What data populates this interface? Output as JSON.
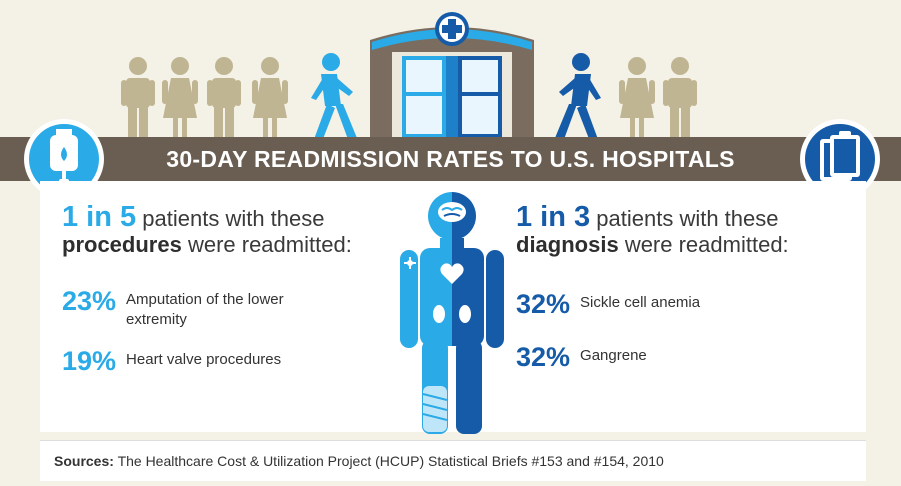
{
  "banner": {
    "title": "30-DAY READMISSION RATES TO U.S. HOSPITALS"
  },
  "left": {
    "ratio_big": "1 in 5",
    "ratio_text": "patients with these",
    "ratio_bold": "procedures",
    "ratio_end": "were readmitted:",
    "stats": [
      {
        "percent": "23%",
        "label_line1": "Amputation of the lower",
        "label_line2": "extremity"
      },
      {
        "percent": "19%",
        "label_line1": "Heart valve procedures",
        "label_line2": ""
      }
    ]
  },
  "right": {
    "ratio_big": "1 in 3",
    "ratio_text": "patients with these",
    "ratio_bold": "diagnosis",
    "ratio_end": "were readmitted:",
    "stats": [
      {
        "percent": "32%",
        "label": "Sickle cell anemia"
      },
      {
        "percent": "32%",
        "label": "Gangrene"
      }
    ]
  },
  "source": {
    "label": "Sources:",
    "text": "The Healthcare Cost & Utilization Project (HCUP) Statistical Briefs #153 and #154, 2010"
  },
  "colors": {
    "light_blue": "#2aaae6",
    "dark_blue": "#155ba8",
    "banner_brown": "#6a5e52",
    "people_tan": "#c0b592",
    "background": "#f4f1e6"
  },
  "icons": [
    "iv-bag-icon",
    "clipboard-icon",
    "hospital-cross-icon",
    "revolving-door-icon",
    "walking-person-icon",
    "man-icon",
    "woman-icon",
    "human-body-icon",
    "brain-icon",
    "heart-icon",
    "kidney-icon",
    "leg-cast-icon"
  ]
}
